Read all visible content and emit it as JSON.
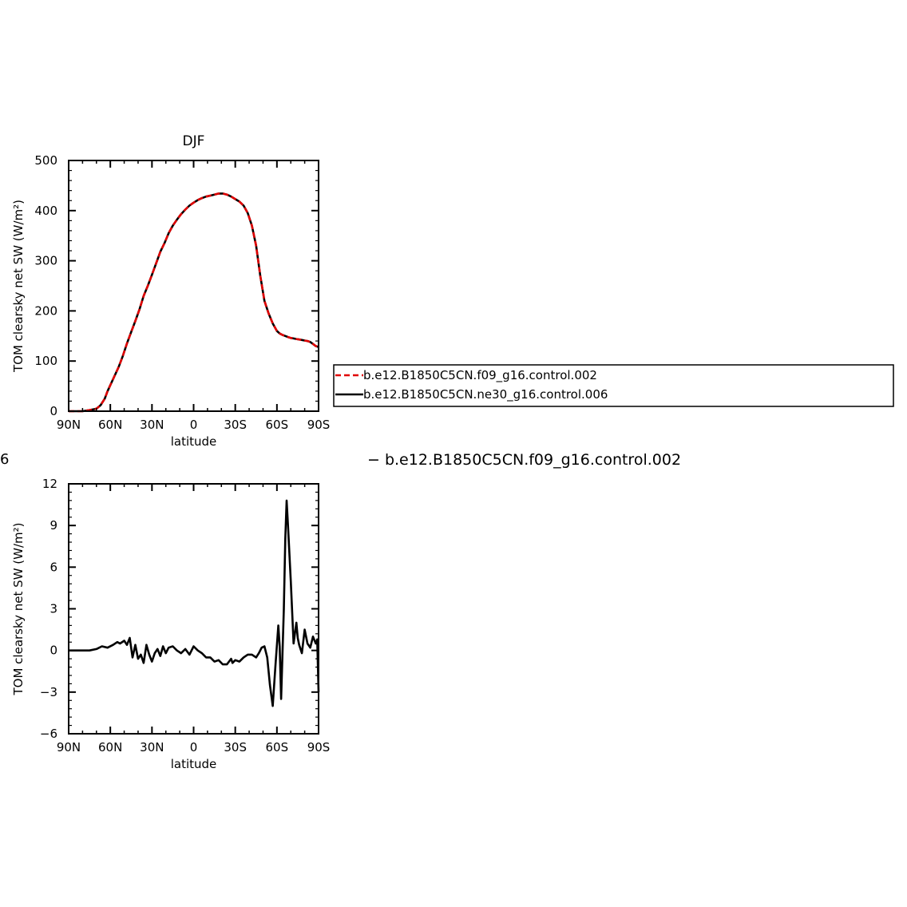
{
  "figure": {
    "cut_label": "6",
    "diff_title": "−  b.e12.B1850C5CN.f09_g16.control.002"
  },
  "legend": {
    "entries": [
      {
        "label": "b.e12.B1850C5CN.f09_g16.control.002",
        "color": "#e00000",
        "dash": "dashed"
      },
      {
        "label": "b.e12.B1850C5CN.ne30_g16.control.006",
        "color": "#000000",
        "dash": "solid"
      }
    ],
    "placement": "right of top panel"
  },
  "chart_data": [
    {
      "type": "line",
      "title": "DJF",
      "xlabel": "latitude",
      "ylabel": "TOM clearsky net SW (W/m²)",
      "xlim": [
        -90,
        90
      ],
      "ylim": [
        0,
        500
      ],
      "xticks": [
        -90,
        -60,
        -30,
        0,
        30,
        60,
        90
      ],
      "xtick_labels": [
        "90N",
        "60N",
        "30N",
        "0",
        "30S",
        "60S",
        "90S"
      ],
      "yticks": [
        0,
        100,
        200,
        300,
        400,
        500
      ],
      "ytick_labels": [
        "0",
        "100",
        "200",
        "300",
        "400",
        "500"
      ],
      "x_note": "latitude plotted from 90N (left) to 90S (right); values are degrees with N as negative, S as positive",
      "grid": false,
      "series": [
        {
          "name": "b.e12.B1850C5CN.ne30_g16.control.006",
          "color": "#000000",
          "dash": "solid",
          "x": [
            -90,
            -80,
            -75,
            -70,
            -67,
            -64,
            -62,
            -60,
            -57,
            -54,
            -51,
            -48,
            -45,
            -42,
            -39,
            -36,
            -33,
            -30,
            -27,
            -24,
            -21,
            -18,
            -15,
            -12,
            -9,
            -6,
            -3,
            0,
            3,
            6,
            9,
            12,
            15,
            18,
            21,
            24,
            27,
            30,
            33,
            36,
            39,
            42,
            45,
            48,
            51,
            54,
            57,
            60,
            62,
            64,
            66,
            68,
            70,
            72,
            74,
            76,
            78,
            80,
            82,
            84,
            86,
            88,
            90
          ],
          "y": [
            0,
            0,
            2,
            5,
            12,
            25,
            40,
            52,
            70,
            88,
            110,
            135,
            158,
            180,
            203,
            230,
            250,
            272,
            295,
            318,
            335,
            355,
            370,
            382,
            393,
            402,
            410,
            416,
            421,
            425,
            428,
            430,
            432,
            434,
            434,
            432,
            428,
            423,
            418,
            410,
            395,
            370,
            330,
            270,
            220,
            195,
            175,
            160,
            155,
            152,
            150,
            148,
            146,
            145,
            144,
            143,
            142,
            141,
            140,
            138,
            134,
            130,
            128
          ]
        },
        {
          "name": "b.e12.B1850C5CN.f09_g16.control.002",
          "color": "#e00000",
          "dash": "dashed",
          "x": [
            -90,
            -80,
            -75,
            -70,
            -67,
            -64,
            -62,
            -60,
            -57,
            -54,
            -51,
            -48,
            -45,
            -42,
            -39,
            -36,
            -33,
            -30,
            -27,
            -24,
            -21,
            -18,
            -15,
            -12,
            -9,
            -6,
            -3,
            0,
            3,
            6,
            9,
            12,
            15,
            18,
            21,
            24,
            27,
            30,
            33,
            36,
            39,
            42,
            45,
            48,
            51,
            54,
            57,
            60,
            62,
            64,
            66,
            68,
            70,
            72,
            74,
            76,
            78,
            80,
            82,
            84,
            86,
            88,
            90
          ],
          "y": [
            0,
            0,
            2,
            5,
            12,
            25,
            40,
            52,
            70,
            88,
            110,
            135,
            158,
            180,
            203,
            230,
            250,
            272,
            295,
            318,
            335,
            355,
            370,
            382,
            393,
            402,
            410,
            416,
            421,
            425,
            428,
            430,
            432,
            434,
            434,
            432,
            428,
            423,
            418,
            410,
            395,
            370,
            330,
            270,
            220,
            195,
            175,
            160,
            155,
            152,
            150,
            148,
            146,
            145,
            144,
            143,
            142,
            141,
            140,
            138,
            134,
            130,
            128
          ]
        }
      ]
    },
    {
      "type": "line",
      "title": "",
      "xlabel": "latitude",
      "ylabel": "TOM clearsky net SW (W/m²)",
      "xlim": [
        -90,
        90
      ],
      "ylim": [
        -6,
        12
      ],
      "xticks": [
        -90,
        -60,
        -30,
        0,
        30,
        60,
        90
      ],
      "xtick_labels": [
        "90N",
        "60N",
        "30N",
        "0",
        "30S",
        "60S",
        "90S"
      ],
      "yticks": [
        -6,
        -3,
        0,
        3,
        6,
        9,
        12
      ],
      "ytick_labels": [
        "−6",
        "−3",
        "0",
        "3",
        "6",
        "9",
        "12"
      ],
      "grid": false,
      "series": [
        {
          "name": "",
          "color": "#000000",
          "dash": "solid",
          "x": [
            -90,
            -75,
            -70,
            -66,
            -62,
            -58,
            -55,
            -53,
            -50,
            -48,
            -46,
            -44,
            -42,
            -40,
            -38,
            -36,
            -34,
            -32,
            -30,
            -28,
            -26,
            -24,
            -22,
            -20,
            -18,
            -15,
            -12,
            -9,
            -6,
            -3,
            0,
            3,
            6,
            9,
            12,
            15,
            18,
            21,
            24,
            27,
            28,
            30,
            33,
            36,
            39,
            42,
            45,
            47,
            49,
            51,
            53,
            55,
            57,
            59,
            61,
            62,
            63,
            65,
            66,
            67,
            68,
            70,
            72,
            74,
            75,
            76,
            78,
            80,
            82,
            84,
            86,
            88,
            89,
            90
          ],
          "y": [
            0,
            0,
            0.1,
            0.3,
            0.2,
            0.4,
            0.6,
            0.5,
            0.7,
            0.4,
            0.9,
            -0.5,
            0.4,
            -0.6,
            -0.3,
            -0.9,
            0.4,
            -0.3,
            -0.8,
            -0.2,
            0.1,
            -0.4,
            0.3,
            -0.2,
            0.2,
            0.3,
            0,
            -0.2,
            0.1,
            -0.3,
            0.3,
            0,
            -0.2,
            -0.5,
            -0.5,
            -0.8,
            -0.7,
            -1.0,
            -1.0,
            -0.6,
            -0.9,
            -0.7,
            -0.8,
            -0.5,
            -0.3,
            -0.3,
            -0.5,
            -0.2,
            0.2,
            0.3,
            -0.5,
            -2.5,
            -4.0,
            -1.0,
            1.8,
            0.3,
            -3.5,
            3.0,
            8.0,
            10.8,
            9.0,
            5.0,
            0.5,
            2.0,
            0.9,
            0.4,
            -0.2,
            1.5,
            0.5,
            0.2,
            1.0,
            0.5,
            0.8,
            -3.0
          ]
        }
      ]
    }
  ]
}
